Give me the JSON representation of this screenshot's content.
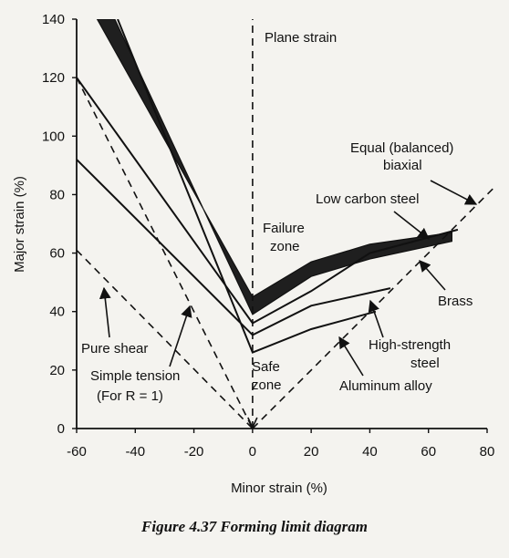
{
  "chart_data": {
    "type": "line",
    "title": "",
    "xlabel": "Minor strain (%)",
    "ylabel": "Major strain (%)",
    "xlim": [
      -60,
      80
    ],
    "ylim": [
      0,
      140
    ],
    "x_ticks": [
      -60,
      -40,
      -20,
      0,
      20,
      40,
      60,
      80
    ],
    "y_ticks": [
      0,
      20,
      40,
      60,
      80,
      100,
      120,
      140
    ],
    "x_tick_labels": [
      "-60",
      "-40",
      "-20",
      "0",
      "20",
      "40",
      "60",
      "80"
    ],
    "y_tick_labels": [
      "0",
      "20",
      "40",
      "60",
      "80",
      "100",
      "120",
      "140"
    ],
    "grid": false,
    "series": [
      {
        "name": "Low carbon steel",
        "style": "band",
        "upper": [
          [
            -53,
            140
          ],
          [
            0,
            45
          ],
          [
            20,
            57
          ],
          [
            40,
            63
          ],
          [
            68,
            67
          ]
        ],
        "lower": [
          [
            -47,
            140
          ],
          [
            0,
            39
          ],
          [
            20,
            52
          ],
          [
            40,
            58
          ],
          [
            68,
            64
          ]
        ]
      },
      {
        "name": "Brass",
        "style": "solid",
        "points": [
          [
            -60,
            120
          ],
          [
            0,
            36
          ],
          [
            20,
            47
          ],
          [
            40,
            60
          ],
          [
            70,
            68
          ]
        ]
      },
      {
        "name": "High-strength steel",
        "style": "solid",
        "points": [
          [
            -60,
            92
          ],
          [
            0,
            32
          ],
          [
            20,
            42
          ],
          [
            47,
            48
          ]
        ]
      },
      {
        "name": "Aluminum alloy",
        "style": "solid",
        "points": [
          [
            -46,
            140
          ],
          [
            0,
            26
          ],
          [
            20,
            34
          ],
          [
            42,
            40
          ]
        ]
      },
      {
        "name": "Plane strain",
        "style": "dashed",
        "points": [
          [
            0,
            0
          ],
          [
            0,
            140
          ]
        ]
      },
      {
        "name": "Pure shear",
        "style": "dashed",
        "points": [
          [
            -60,
            61
          ],
          [
            0,
            0
          ]
        ]
      },
      {
        "name": "Simple tension",
        "style": "dashed",
        "points": [
          [
            -60,
            120
          ],
          [
            0,
            0
          ]
        ]
      },
      {
        "name": "Equal (balanced) biaxial",
        "style": "dashed",
        "points": [
          [
            0,
            0
          ],
          [
            82,
            82
          ]
        ]
      }
    ],
    "annotations": {
      "plane_strain": "Plane strain",
      "equal_biaxial_1": "Equal (balanced)",
      "equal_biaxial_2": "biaxial",
      "low_carbon_steel": "Low carbon steel",
      "failure_zone_1": "Failure",
      "failure_zone_2": "zone",
      "brass": "Brass",
      "high_strength_1": "High-strength",
      "high_strength_2": "steel",
      "aluminum_alloy": "Aluminum alloy",
      "safe_zone_1": "Safe",
      "safe_zone_2": "zone",
      "pure_shear": "Pure shear",
      "simple_tension_1": "Simple tension",
      "simple_tension_2": "(For R = 1)"
    }
  },
  "caption": "Figure 4.37 Forming limit diagram"
}
